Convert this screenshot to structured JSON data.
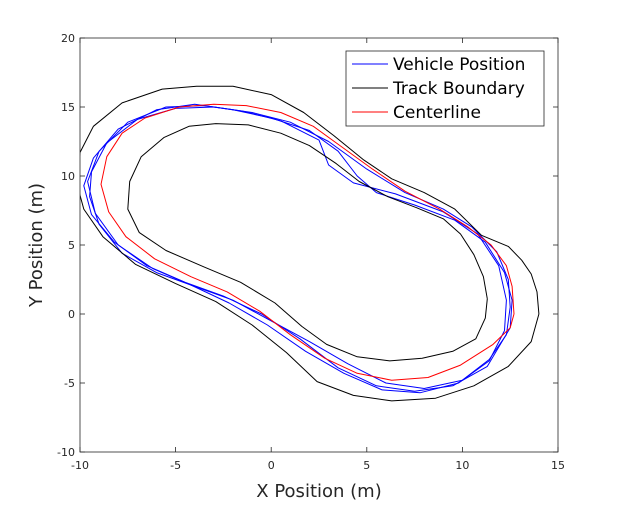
{
  "chart_data": {
    "type": "line",
    "title": "",
    "xlabel": "X Position (m)",
    "ylabel": "Y Position (m)",
    "xlim": [
      -10,
      15
    ],
    "ylim": [
      -10,
      20
    ],
    "xticks": [
      -10,
      -5,
      0,
      5,
      10,
      15
    ],
    "yticks": [
      -10,
      -5,
      0,
      5,
      10,
      15,
      20
    ],
    "xtick_labels": [
      "-10",
      "-5",
      "0",
      "5",
      "10",
      "15"
    ],
    "ytick_labels": [
      "-10",
      "-5",
      "0",
      "5",
      "10",
      "15",
      "20"
    ],
    "grid": false,
    "legend_position": "top-right",
    "series": [
      {
        "name": "Vehicle Position",
        "color": "#0000ff",
        "loops": [
          [
            [
              12.3,
              -1.5
            ],
            [
              12.5,
              0.5
            ],
            [
              12.4,
              2.5
            ],
            [
              11.8,
              4.5
            ],
            [
              10.5,
              6.3
            ],
            [
              9,
              7.6
            ],
            [
              7,
              8.8
            ],
            [
              5,
              10.5
            ],
            [
              3,
              12.5
            ],
            [
              1,
              13.9
            ],
            [
              -1,
              14.6
            ],
            [
              -3,
              15
            ],
            [
              -5,
              14.9
            ],
            [
              -7,
              14.1
            ],
            [
              -8.6,
              12.4
            ],
            [
              -9.4,
              10.3
            ],
            [
              -9.5,
              8.5
            ],
            [
              -9,
              6.5
            ],
            [
              -7.8,
              4.4
            ],
            [
              -6,
              3
            ],
            [
              -4,
              2
            ],
            [
              -2,
              1
            ],
            [
              0,
              -0.5
            ],
            [
              2,
              -2
            ],
            [
              4,
              -3.6
            ],
            [
              6,
              -5
            ],
            [
              8,
              -5.4
            ],
            [
              10,
              -4.8
            ],
            [
              11.4,
              -3.3
            ],
            [
              12.3,
              -1.5
            ]
          ],
          [
            [
              12.5,
              -1
            ],
            [
              12.6,
              1
            ],
            [
              12.2,
              3
            ],
            [
              11.2,
              5.2
            ],
            [
              9.6,
              6.8
            ],
            [
              7.5,
              7.9
            ],
            [
              5.5,
              8.8
            ],
            [
              4.5,
              10
            ],
            [
              3.5,
              11.8
            ],
            [
              2,
              13.3
            ],
            [
              0,
              14.2
            ],
            [
              -2,
              14.8
            ],
            [
              -4,
              15.2
            ],
            [
              -6,
              14.8
            ],
            [
              -8,
              13.4
            ],
            [
              -9.3,
              11.3
            ],
            [
              -9.8,
              9.3
            ],
            [
              -9.4,
              7.2
            ],
            [
              -8.2,
              5.2
            ],
            [
              -6.5,
              3.5
            ],
            [
              -4.5,
              2.3
            ],
            [
              -2.5,
              1.3
            ],
            [
              -0.5,
              0
            ],
            [
              1.5,
              -1.8
            ],
            [
              3.5,
              -3.9
            ],
            [
              5.5,
              -5.2
            ],
            [
              7.5,
              -5.6
            ],
            [
              9.5,
              -5.2
            ],
            [
              11.3,
              -3.8
            ],
            [
              12.5,
              -1
            ]
          ],
          [
            [
              12.2,
              -1.2
            ],
            [
              12.3,
              1
            ],
            [
              11.9,
              3.5
            ],
            [
              10.8,
              5.8
            ],
            [
              9,
              7.4
            ],
            [
              6.5,
              8.7
            ],
            [
              4.3,
              9.5
            ],
            [
              3,
              10.8
            ],
            [
              2.5,
              12.6
            ],
            [
              0.5,
              14
            ],
            [
              -1.5,
              14.7
            ],
            [
              -3.5,
              15.1
            ],
            [
              -5.5,
              15
            ],
            [
              -7.5,
              13.9
            ],
            [
              -9,
              11.8
            ],
            [
              -9.6,
              9.6
            ],
            [
              -9.2,
              7.3
            ],
            [
              -8,
              5
            ],
            [
              -6.2,
              3.3
            ],
            [
              -4.2,
              2.1
            ],
            [
              -2.2,
              0.8
            ],
            [
              -0.2,
              -0.8
            ],
            [
              1.8,
              -2.7
            ],
            [
              3.8,
              -4.3
            ],
            [
              5.8,
              -5.5
            ],
            [
              7.8,
              -5.7
            ],
            [
              9.8,
              -5
            ],
            [
              11.4,
              -3.4
            ],
            [
              12.2,
              -1.2
            ]
          ]
        ]
      },
      {
        "name": "Track Boundary",
        "color": "#000000",
        "loops": [
          [
            [
              14,
              0
            ],
            [
              13.9,
              1.6
            ],
            [
              13.6,
              2.9
            ],
            [
              13.1,
              3.9
            ],
            [
              12.4,
              4.9
            ],
            [
              11,
              5.7
            ],
            [
              9.6,
              7.6
            ],
            [
              8,
              8.8
            ],
            [
              6.3,
              9.8
            ],
            [
              4.8,
              11.2
            ],
            [
              3.3,
              12.9
            ],
            [
              1.7,
              14.6
            ],
            [
              0,
              15.9
            ],
            [
              -2,
              16.5
            ],
            [
              -3.9,
              16.5
            ],
            [
              -5.7,
              16.3
            ],
            [
              -7.8,
              15.3
            ],
            [
              -9.3,
              13.6
            ],
            [
              -10,
              11.7
            ],
            [
              -10.2,
              9.6
            ],
            [
              -9.8,
              7.6
            ],
            [
              -8.8,
              5.6
            ],
            [
              -7.1,
              3.6
            ],
            [
              -5,
              2.2
            ],
            [
              -2.9,
              0.9
            ],
            [
              -1,
              -0.8
            ],
            [
              0.8,
              -2.8
            ],
            [
              2.4,
              -4.9
            ],
            [
              4.3,
              -5.9
            ],
            [
              6.3,
              -6.3
            ],
            [
              8.6,
              -6.1
            ],
            [
              10.6,
              -5.2
            ],
            [
              12.4,
              -3.8
            ],
            [
              13.6,
              -2
            ],
            [
              14,
              0
            ]
          ],
          [
            [
              11.3,
              1.1
            ],
            [
              11.2,
              -0.3
            ],
            [
              10.7,
              -1.8
            ],
            [
              9.5,
              -2.7
            ],
            [
              7.9,
              -3.2
            ],
            [
              6.2,
              -3.4
            ],
            [
              4.5,
              -3.1
            ],
            [
              2.9,
              -2.2
            ],
            [
              1.6,
              -0.9
            ],
            [
              0.2,
              0.8
            ],
            [
              -1.6,
              2.3
            ],
            [
              -3.5,
              3.4
            ],
            [
              -5.5,
              4.6
            ],
            [
              -6.9,
              5.9
            ],
            [
              -7.5,
              7.6
            ],
            [
              -7.4,
              9.6
            ],
            [
              -6.8,
              11.4
            ],
            [
              -5.6,
              12.8
            ],
            [
              -4.3,
              13.6
            ],
            [
              -2.9,
              13.8
            ],
            [
              -1.2,
              13.7
            ],
            [
              0.5,
              13.1
            ],
            [
              2,
              12.2
            ],
            [
              3.4,
              10.9
            ],
            [
              4.6,
              9.6
            ],
            [
              6.1,
              8.5
            ],
            [
              7.6,
              7.7
            ],
            [
              9,
              6.9
            ],
            [
              9.9,
              5.8
            ],
            [
              10.6,
              4.3
            ],
            [
              11.1,
              2.7
            ],
            [
              11.3,
              1.1
            ]
          ]
        ]
      },
      {
        "name": "Centerline",
        "color": "#ff0000",
        "loops": [
          [
            [
              12.7,
              0
            ],
            [
              12.6,
              2
            ],
            [
              12.3,
              3.5
            ],
            [
              11.5,
              5
            ],
            [
              10.3,
              6.3
            ],
            [
              8.8,
              7.6
            ],
            [
              7,
              8.9
            ],
            [
              5.3,
              10.5
            ],
            [
              3.7,
              12.1
            ],
            [
              2.2,
              13.6
            ],
            [
              0.5,
              14.6
            ],
            [
              -1.3,
              15.1
            ],
            [
              -3,
              15.2
            ],
            [
              -4.8,
              15
            ],
            [
              -6.6,
              14.2
            ],
            [
              -7.8,
              13.1
            ],
            [
              -8.6,
              11.4
            ],
            [
              -8.9,
              9.4
            ],
            [
              -8.5,
              7.4
            ],
            [
              -7.6,
              5.6
            ],
            [
              -6.1,
              4
            ],
            [
              -4.2,
              2.7
            ],
            [
              -2.3,
              1.6
            ],
            [
              -0.6,
              0.2
            ],
            [
              1,
              -1.5
            ],
            [
              2.8,
              -3.2
            ],
            [
              4.5,
              -4.3
            ],
            [
              6.3,
              -4.8
            ],
            [
              8.2,
              -4.6
            ],
            [
              9.9,
              -3.7
            ],
            [
              11.6,
              -2.2
            ],
            [
              12.5,
              -1
            ],
            [
              12.7,
              0
            ]
          ]
        ]
      }
    ]
  }
}
